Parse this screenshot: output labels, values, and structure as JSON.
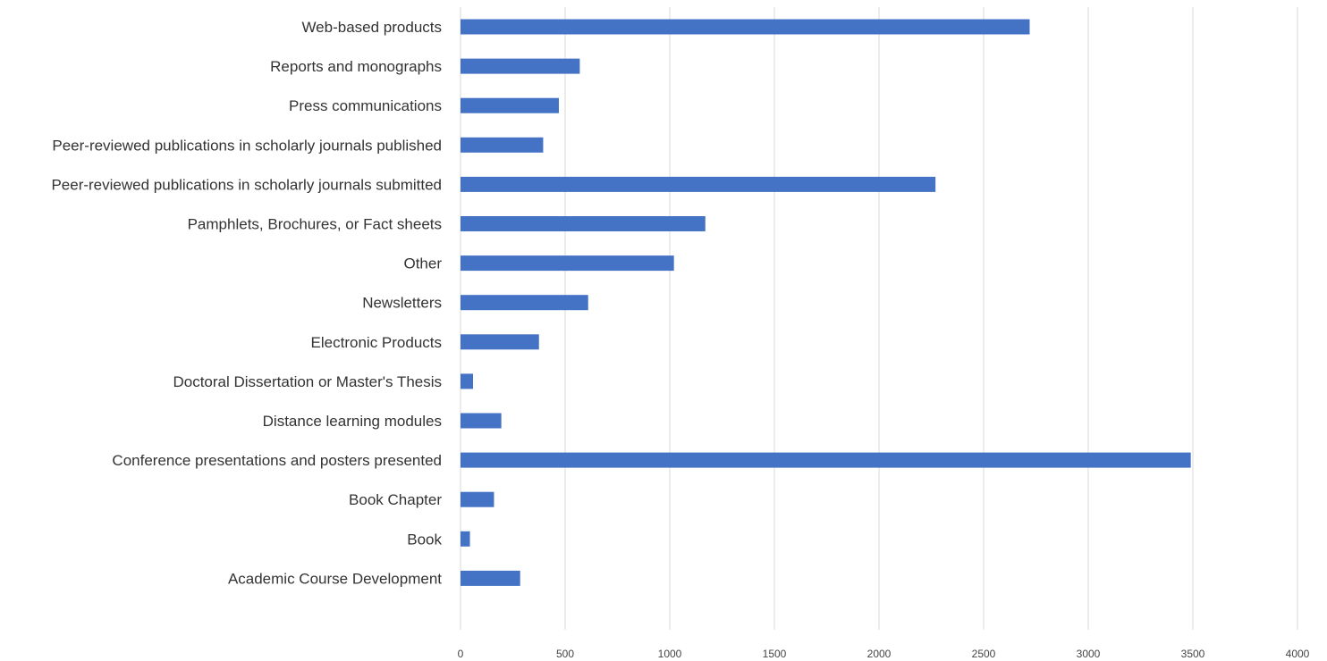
{
  "chart_data": {
    "type": "bar",
    "orientation": "horizontal",
    "title": "",
    "xlabel": "",
    "ylabel": "",
    "categories": [
      "Web-based products",
      "Reports and monographs",
      "Press communications",
      "Peer-reviewed publications in scholarly journals published",
      "Peer-reviewed publications in scholarly journals submitted",
      "Pamphlets, Brochures, or Fact sheets",
      "Other",
      "Newsletters",
      "Electronic Products",
      "Doctoral Dissertation or Master's Thesis",
      "Distance learning modules",
      "Conference presentations and posters presented",
      "Book Chapter",
      "Book",
      "Academic Course Development"
    ],
    "values": [
      2720,
      570,
      470,
      395,
      2270,
      1170,
      1020,
      610,
      375,
      60,
      195,
      3490,
      160,
      45,
      285
    ],
    "xlim": [
      0,
      4000
    ],
    "xticks": [
      0,
      500,
      1000,
      1500,
      2000,
      2500,
      3000,
      3500,
      4000
    ],
    "grid": "vertical",
    "legend": "none",
    "bar_color": "#4472c4",
    "grid_color": "#d9d9d9"
  }
}
